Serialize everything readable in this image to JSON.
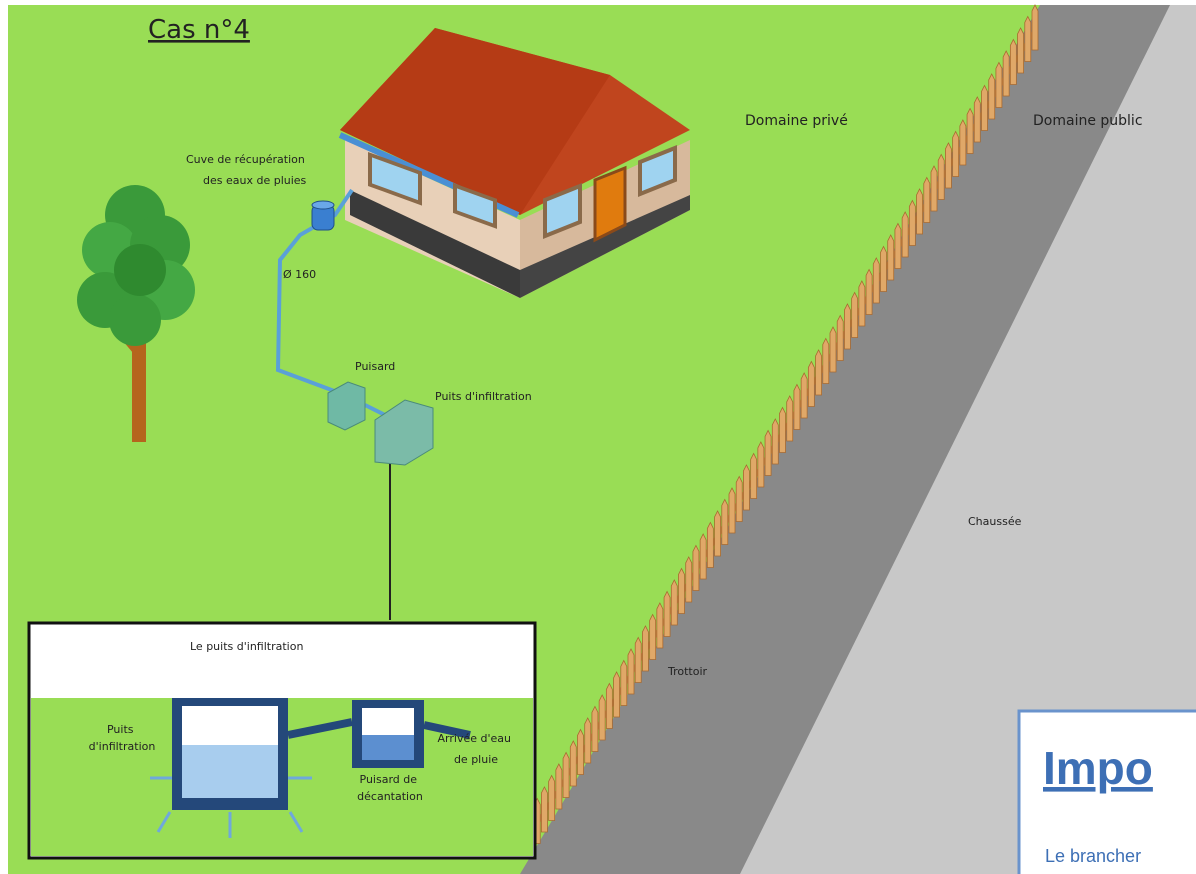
{
  "header": {
    "title": "Cas n°4"
  },
  "labels": {
    "private_domain": "Domaine privé",
    "public_domain": "Domaine public",
    "tank": [
      "Cuve de récupération",
      "des eaux de pluies"
    ],
    "pipe": "Ø 160",
    "sump": "Puisard",
    "well": "Puits d'infiltration",
    "road": "Chaussée",
    "sidewalk": "Trottoir"
  },
  "inset": {
    "title": "Le puits d'infiltration",
    "well": [
      "Puits",
      "d'infiltration"
    ],
    "inlet": [
      "Arrivée d'eau",
      "de pluie"
    ],
    "sump": [
      "Puisard de",
      "décantation"
    ]
  },
  "notice": {
    "heading": "Impo",
    "text": "Le brancher"
  }
}
